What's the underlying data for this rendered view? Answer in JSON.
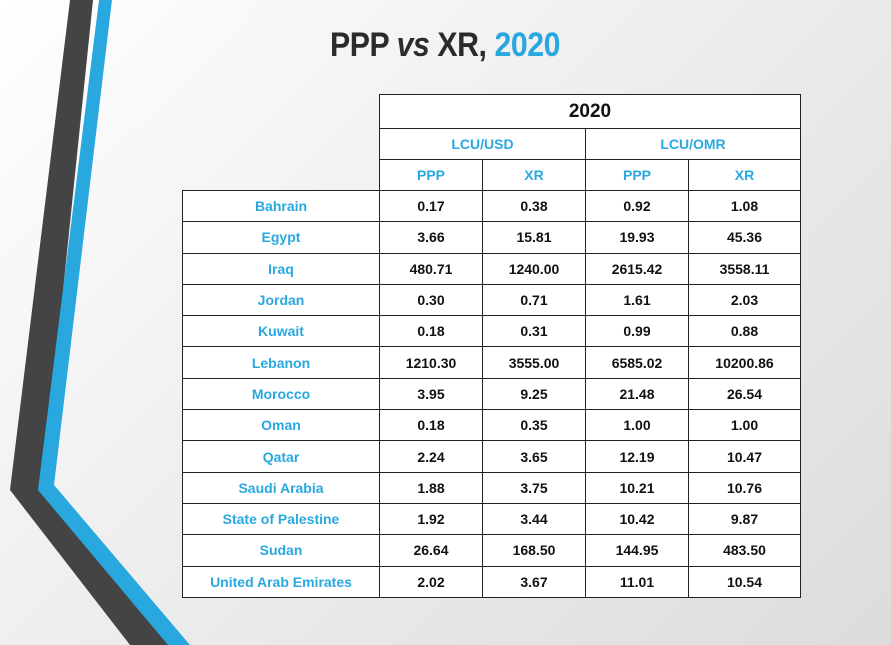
{
  "title": {
    "part1": "PPP",
    "part2": "vs",
    "part3": "XR,",
    "part4": "2020"
  },
  "colors": {
    "accent": "#29a8e0",
    "dark_stripe": "#444444",
    "text": "#111111"
  },
  "table": {
    "year_header": "2020",
    "unit_headers": [
      "LCU/USD",
      "LCU/OMR"
    ],
    "sub_headers": [
      "PPP",
      "XR",
      "PPP",
      "XR"
    ],
    "rows": [
      {
        "country": "Bahrain",
        "values": [
          "0.17",
          "0.38",
          "0.92",
          "1.08"
        ]
      },
      {
        "country": "Egypt",
        "values": [
          "3.66",
          "15.81",
          "19.93",
          "45.36"
        ]
      },
      {
        "country": "Iraq",
        "values": [
          "480.71",
          "1240.00",
          "2615.42",
          "3558.11"
        ]
      },
      {
        "country": "Jordan",
        "values": [
          "0.30",
          "0.71",
          "1.61",
          "2.03"
        ]
      },
      {
        "country": "Kuwait",
        "values": [
          "0.18",
          "0.31",
          "0.99",
          "0.88"
        ]
      },
      {
        "country": "Lebanon",
        "values": [
          "1210.30",
          "3555.00",
          "6585.02",
          "10200.86"
        ]
      },
      {
        "country": "Morocco",
        "values": [
          "3.95",
          "9.25",
          "21.48",
          "26.54"
        ]
      },
      {
        "country": "Oman",
        "values": [
          "0.18",
          "0.35",
          "1.00",
          "1.00"
        ]
      },
      {
        "country": "Qatar",
        "values": [
          "2.24",
          "3.65",
          "12.19",
          "10.47"
        ]
      },
      {
        "country": "Saudi Arabia",
        "values": [
          "1.88",
          "3.75",
          "10.21",
          "10.76"
        ]
      },
      {
        "country": "State of Palestine",
        "values": [
          "1.92",
          "3.44",
          "10.42",
          "9.87"
        ]
      },
      {
        "country": "Sudan",
        "values": [
          "26.64",
          "168.50",
          "144.95",
          "483.50"
        ]
      },
      {
        "country": "United Arab Emirates",
        "values": [
          "2.02",
          "3.67",
          "11.01",
          "10.54"
        ]
      }
    ]
  }
}
